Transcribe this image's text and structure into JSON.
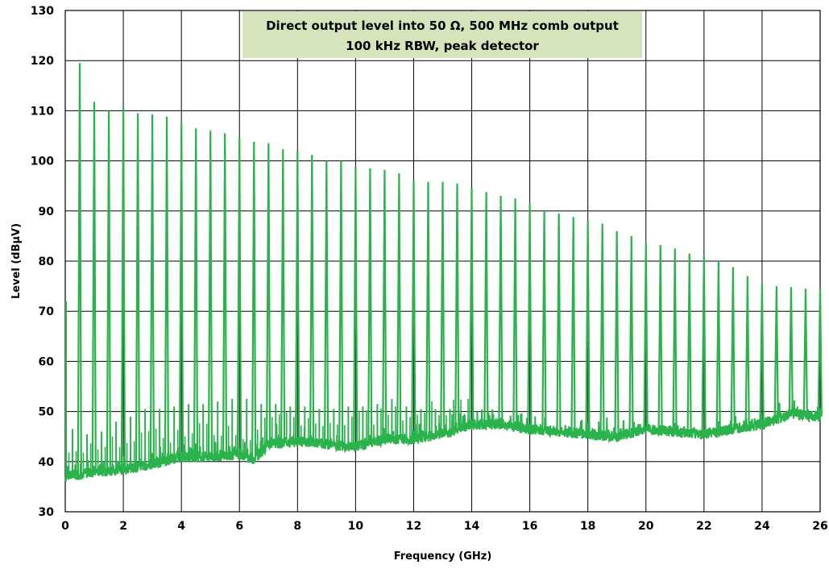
{
  "chart_data": {
    "type": "line",
    "title_lines": [
      "Direct output level into 50 Ω, 500 MHz comb output",
      "100 kHz RBW, peak detector"
    ],
    "xlabel": "Frequency (GHz)",
    "ylabel": "Level (dBμV)",
    "xlim": [
      0,
      26
    ],
    "ylim": [
      30,
      130
    ],
    "xticks": [
      0,
      2,
      4,
      6,
      8,
      10,
      12,
      14,
      16,
      18,
      20,
      22,
      24,
      26
    ],
    "xtick_labels": [
      "0",
      "2",
      "4",
      "6",
      "8",
      "10",
      "12",
      "14",
      "16",
      "18",
      "20",
      "22",
      "24",
      "26"
    ],
    "yticks": [
      30,
      40,
      50,
      60,
      70,
      80,
      90,
      100,
      110,
      120,
      130
    ],
    "ytick_labels": [
      "30",
      "40",
      "50",
      "60",
      "70",
      "80",
      "90",
      "100",
      "110",
      "120",
      "130"
    ],
    "grid": true,
    "line_color": "#2bb24c",
    "title_box_color": "#d6e4bc",
    "series": [
      {
        "comb_peaks": {
          "x": [
            0.5,
            1.0,
            1.5,
            2.0,
            2.5,
            3.0,
            3.5,
            4.0,
            4.5,
            5.0,
            5.5,
            6.0,
            6.5,
            7.0,
            7.5,
            8.0,
            8.5,
            9.0,
            9.5,
            10.0,
            10.5,
            11.0,
            11.5,
            12.0,
            12.5,
            13.0,
            13.5,
            14.0,
            14.5,
            15.0,
            15.5,
            16.0,
            16.5,
            17.0,
            17.5,
            18.0,
            18.5,
            19.0,
            19.5,
            20.0,
            20.5,
            21.0,
            21.5,
            22.0,
            22.5,
            23.0,
            23.5,
            24.0,
            24.5,
            25.0,
            25.5,
            26.0
          ],
          "y": [
            119.5,
            111.8,
            110.0,
            110.8,
            109.5,
            109.3,
            108.8,
            107.5,
            106.5,
            106.0,
            105.5,
            104.8,
            103.8,
            103.5,
            102.3,
            102.0,
            101.2,
            100.0,
            100.0,
            98.8,
            98.5,
            98.2,
            97.5,
            96.0,
            95.8,
            95.8,
            95.5,
            94.5,
            93.8,
            93.0,
            92.5,
            91.5,
            90.0,
            89.5,
            88.8,
            88.0,
            87.5,
            86.0,
            85.0,
            83.5,
            83.2,
            82.5,
            81.5,
            81.0,
            80.0,
            78.8,
            77.0,
            75.5,
            75.0,
            74.8,
            74.5,
            74.5
          ]
        },
        "noise_floor": {
          "x": [
            0,
            1,
            2,
            3,
            4,
            5,
            6,
            6.5,
            7,
            8,
            9,
            10,
            11,
            12,
            13,
            14,
            15,
            16,
            17,
            18,
            19,
            20,
            21,
            22,
            23,
            24,
            25,
            26
          ],
          "y": [
            37,
            38,
            38.5,
            39.5,
            41,
            41,
            41.5,
            40.5,
            43.5,
            44,
            43.5,
            43,
            44.5,
            44.5,
            45.5,
            47.5,
            47.5,
            46.5,
            46,
            45.5,
            45,
            46.5,
            46,
            45.5,
            46.5,
            47.5,
            49.5,
            49
          ]
        },
        "spur_tops": {
          "x": [
            0.25,
            0.75,
            1.25,
            1.75,
            2.25,
            2.75,
            3.25,
            3.75,
            4.25,
            4.75,
            5.25,
            5.75,
            6.25,
            6.75,
            7.25,
            7.75,
            8.25,
            8.75,
            9.25,
            9.75,
            10.25,
            10.75,
            11.25,
            11.75,
            12.25,
            12.75,
            13.25,
            13.75
          ],
          "y": [
            46.5,
            45.5,
            46,
            48,
            49,
            50.5,
            50.5,
            51,
            51.5,
            51.5,
            52,
            52.5,
            52.5,
            51.5,
            51.5,
            51,
            51,
            50.5,
            50.5,
            51,
            51,
            51.5,
            52.5,
            51,
            50.5,
            50.5,
            50.5,
            49.5
          ]
        }
      }
    ]
  }
}
